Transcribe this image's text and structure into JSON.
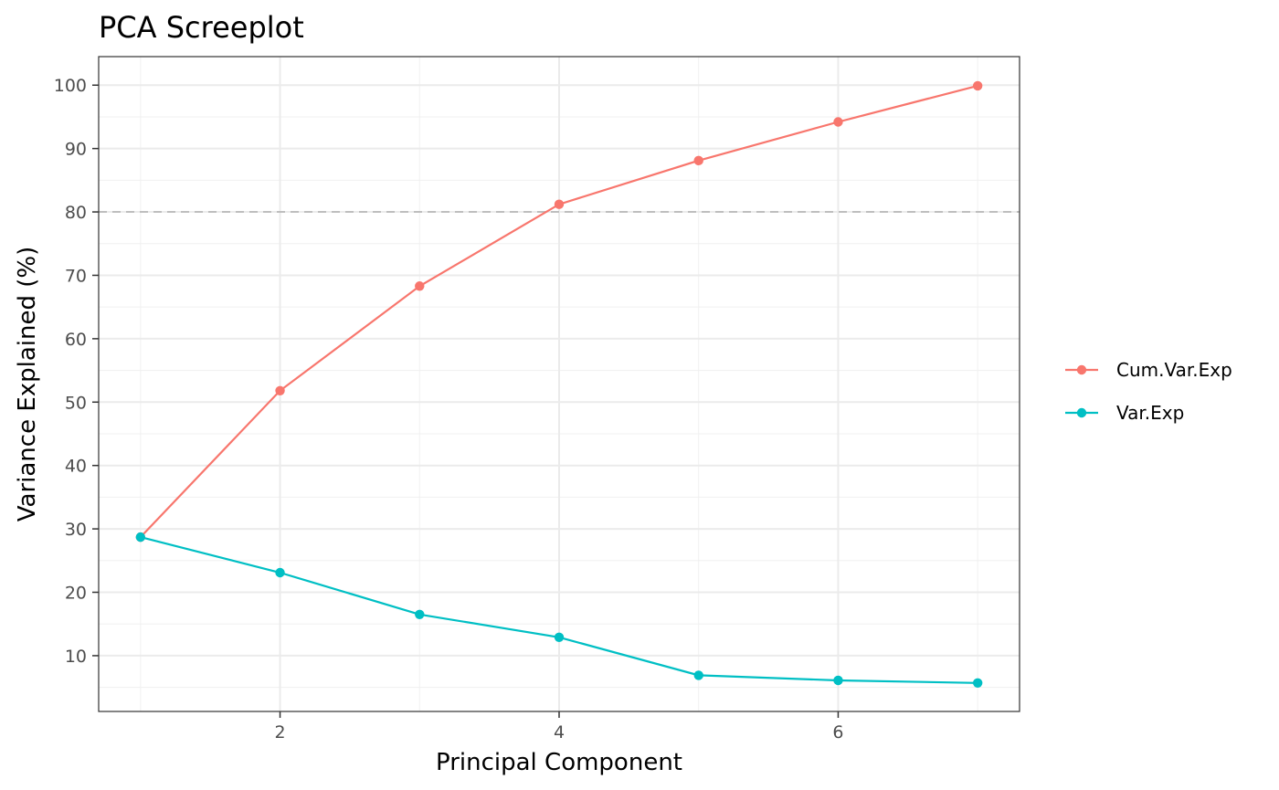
{
  "chart_data": {
    "type": "line",
    "title": "PCA Screeplot",
    "xlabel": "Principal Component",
    "ylabel": "Variance Explained (%)",
    "x": [
      1,
      2,
      3,
      4,
      5,
      6,
      7
    ],
    "xlim": [
      0.7,
      7.3
    ],
    "ylim": [
      1.2,
      104.5
    ],
    "xticks": [
      2,
      4,
      6
    ],
    "yticks": [
      10,
      20,
      30,
      40,
      50,
      60,
      70,
      80,
      90,
      100
    ],
    "reference_line": {
      "y": 80,
      "style": "dashed",
      "color": "#bebebe"
    },
    "grid": true,
    "legend_position": "right",
    "series": [
      {
        "name": "Cum.Var.Exp",
        "color": "#F8766D",
        "values": [
          28.7,
          51.8,
          68.3,
          81.2,
          88.1,
          94.2,
          99.9
        ]
      },
      {
        "name": "Var.Exp",
        "color": "#00BFC4",
        "values": [
          28.7,
          23.1,
          16.5,
          12.9,
          6.9,
          6.1,
          5.7
        ]
      }
    ]
  }
}
